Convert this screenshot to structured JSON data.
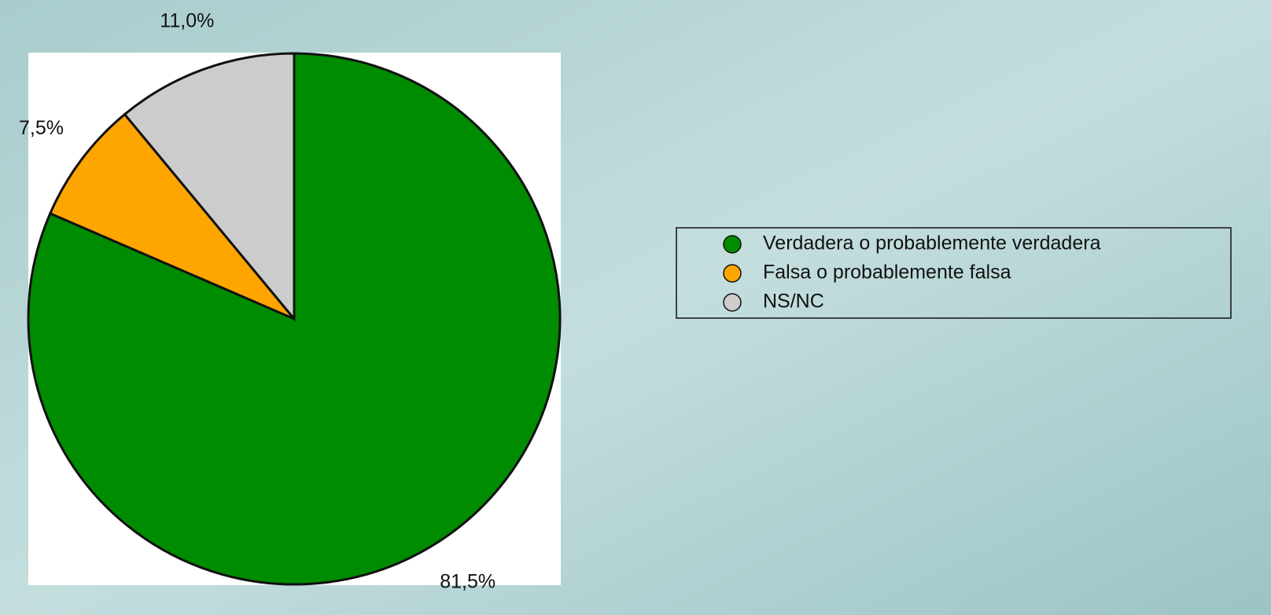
{
  "chart_data": {
    "type": "pie",
    "categories": [
      "Verdadera o probablemente verdadera",
      "Falsa o probablemente falsa",
      "NS/NC"
    ],
    "values": [
      81.5,
      7.5,
      11.0
    ],
    "value_labels": [
      "81,5%",
      "7,5%",
      "11,0%"
    ],
    "colors": [
      "#008c00",
      "#ffa500",
      "#cccccc"
    ],
    "legend": "right"
  }
}
